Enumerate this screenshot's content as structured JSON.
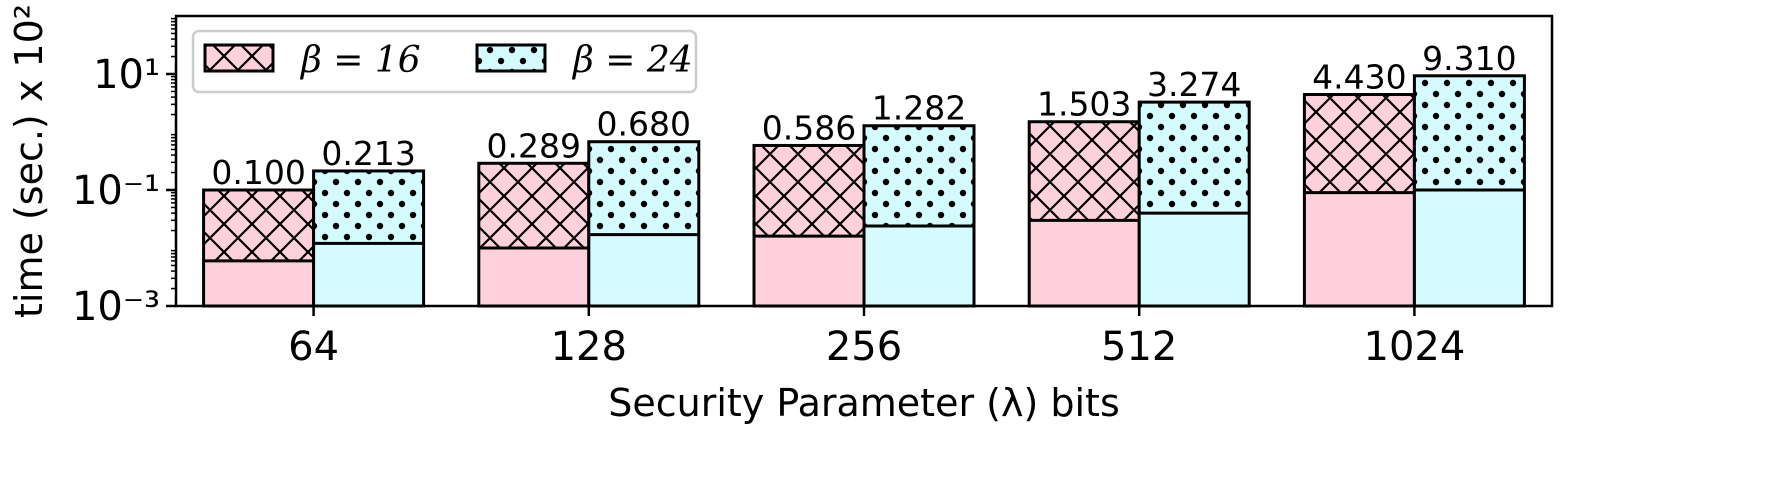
{
  "chart_data": {
    "type": "bar",
    "title": "",
    "xlabel": "Security Parameter (λ) bits",
    "ylabel": "time (sec.) x 10²",
    "yscale": "log",
    "ylim": [
      0.001,
      100
    ],
    "yticks": [
      {
        "value": 0.001,
        "label": "10⁻³"
      },
      {
        "value": 0.1,
        "label": "10⁻¹"
      },
      {
        "value": 10,
        "label": "10¹"
      }
    ],
    "categories": [
      "64",
      "128",
      "256",
      "512",
      "1024"
    ],
    "legend_position": "top-left",
    "grid": false,
    "series": [
      {
        "name": "β = 16",
        "color": "#ffd1dc",
        "pattern": "crosshatch",
        "values": [
          0.1,
          0.289,
          0.586,
          1.503,
          4.43
        ],
        "value_labels": [
          "0.100",
          "0.289",
          "0.586",
          "1.503",
          "4.430"
        ],
        "base_values": [
          0.006,
          0.01,
          0.016,
          0.03,
          0.09
        ]
      },
      {
        "name": "β = 24",
        "color": "#d4fbfd",
        "pattern": "dots",
        "values": [
          0.213,
          0.68,
          1.282,
          3.274,
          9.31
        ],
        "value_labels": [
          "0.213",
          "0.680",
          "1.282",
          "3.274",
          "9.310"
        ],
        "base_values": [
          0.012,
          0.017,
          0.024,
          0.04,
          0.1
        ]
      }
    ]
  }
}
